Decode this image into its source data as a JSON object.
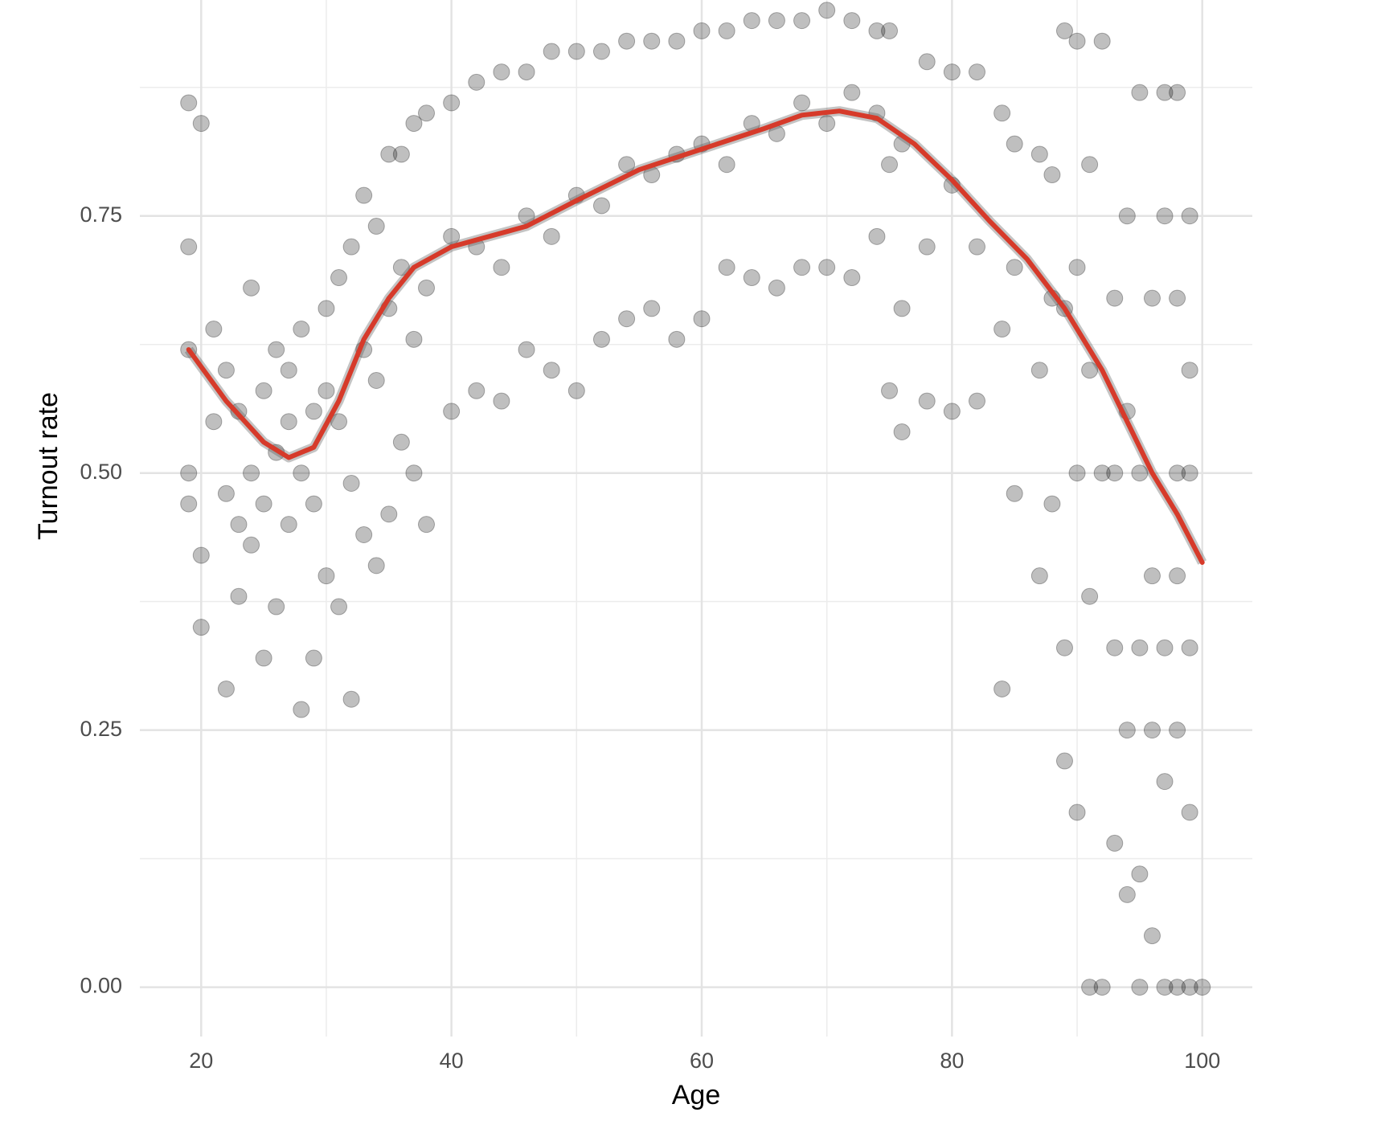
{
  "chart_data": {
    "type": "scatter",
    "x_label": "Age",
    "y_label": "Turnout rate",
    "xlim": [
      15.1,
      104
    ],
    "ylim": [
      -0.048,
      0.96
    ],
    "xticks": [
      20,
      40,
      60,
      80,
      100
    ],
    "yticks": [
      {
        "value": 0,
        "label": "0.00"
      },
      0.25,
      {
        "value": 0.5,
        "label": "0.50"
      },
      0.75
    ],
    "x_minor_ticks": [
      30,
      50,
      70,
      90
    ],
    "y_minor_ticks": [
      0.125,
      0.375,
      0.625,
      0.875
    ],
    "grid": true,
    "series": [
      {
        "kind": "points",
        "color": "#000000",
        "x": [
          19,
          19,
          19,
          19,
          19,
          20,
          20,
          20,
          21,
          21,
          22,
          22,
          22,
          23,
          23,
          23,
          24,
          24,
          24,
          25,
          25,
          25,
          26,
          26,
          26,
          27,
          27,
          27,
          28,
          28,
          28,
          29,
          29,
          29,
          30,
          30,
          30,
          31,
          31,
          31,
          32,
          32,
          32,
          33,
          33,
          33,
          34,
          34,
          34,
          35,
          35,
          35,
          36,
          36,
          36,
          37,
          37,
          37,
          38,
          38,
          38,
          40,
          40,
          40,
          42,
          42,
          42,
          44,
          44,
          44,
          46,
          46,
          46,
          48,
          48,
          48,
          50,
          50,
          50,
          52,
          52,
          52,
          54,
          54,
          54,
          56,
          56,
          56,
          58,
          58,
          58,
          60,
          60,
          60,
          62,
          62,
          62,
          64,
          64,
          64,
          66,
          66,
          66,
          68,
          68,
          68,
          70,
          70,
          70,
          72,
          72,
          72,
          74,
          74,
          74,
          75,
          75,
          75,
          76,
          76,
          76,
          78,
          78,
          78,
          80,
          80,
          80,
          82,
          82,
          82,
          84,
          84,
          84,
          85,
          85,
          85,
          87,
          87,
          87,
          88,
          88,
          88,
          89,
          89,
          89,
          89,
          90,
          90,
          90,
          90,
          91,
          91,
          91,
          91,
          92,
          92,
          92,
          93,
          93,
          93,
          93,
          94,
          94,
          94,
          94,
          95,
          95,
          95,
          95,
          95,
          96,
          96,
          96,
          96,
          97,
          97,
          97,
          97,
          97,
          98,
          98,
          98,
          98,
          98,
          98,
          99,
          99,
          99,
          99,
          99,
          99,
          100
        ],
        "y": [
          0.86,
          0.72,
          0.62,
          0.5,
          0.47,
          0.84,
          0.42,
          0.35,
          0.64,
          0.55,
          0.29,
          0.48,
          0.6,
          0.45,
          0.56,
          0.38,
          0.68,
          0.5,
          0.43,
          0.32,
          0.58,
          0.47,
          0.37,
          0.52,
          0.62,
          0.45,
          0.55,
          0.6,
          0.27,
          0.5,
          0.64,
          0.32,
          0.47,
          0.56,
          0.4,
          0.58,
          0.66,
          0.37,
          0.55,
          0.69,
          0.28,
          0.49,
          0.72,
          0.44,
          0.62,
          0.77,
          0.41,
          0.59,
          0.74,
          0.46,
          0.66,
          0.81,
          0.53,
          0.7,
          0.81,
          0.5,
          0.63,
          0.84,
          0.45,
          0.68,
          0.85,
          0.56,
          0.73,
          0.86,
          0.58,
          0.72,
          0.88,
          0.57,
          0.7,
          0.89,
          0.62,
          0.75,
          0.89,
          0.6,
          0.73,
          0.91,
          0.58,
          0.77,
          0.91,
          0.63,
          0.76,
          0.91,
          0.65,
          0.8,
          0.92,
          0.66,
          0.79,
          0.92,
          0.63,
          0.81,
          0.92,
          0.65,
          0.82,
          0.93,
          0.7,
          0.8,
          0.93,
          0.69,
          0.84,
          0.94,
          0.68,
          0.83,
          0.94,
          0.7,
          0.86,
          0.94,
          0.7,
          0.84,
          0.95,
          0.69,
          0.87,
          0.94,
          0.73,
          0.85,
          0.93,
          0.58,
          0.8,
          0.93,
          0.54,
          0.66,
          0.82,
          0.57,
          0.72,
          0.9,
          0.56,
          0.78,
          0.89,
          0.57,
          0.72,
          0.89,
          0.29,
          0.64,
          0.85,
          0.48,
          0.7,
          0.82,
          0.4,
          0.6,
          0.81,
          0.47,
          0.67,
          0.79,
          0.22,
          0.33,
          0.66,
          0.93,
          0.17,
          0.5,
          0.7,
          0.92,
          0.0,
          0.38,
          0.6,
          0.8,
          0.0,
          0.5,
          0.92,
          0.14,
          0.33,
          0.5,
          0.67,
          0.09,
          0.25,
          0.56,
          0.75,
          0.0,
          0.11,
          0.33,
          0.5,
          0.87,
          0.05,
          0.25,
          0.4,
          0.67,
          0.0,
          0.2,
          0.33,
          0.75,
          0.87,
          0.0,
          0.25,
          0.4,
          0.5,
          0.67,
          0.87,
          0.0,
          0.17,
          0.33,
          0.5,
          0.6,
          0.75,
          0.0
        ]
      },
      {
        "kind": "smooth",
        "color": "#d63a2a",
        "x": [
          19,
          22,
          25,
          27,
          29,
          31,
          33,
          35,
          37,
          40,
          43,
          46,
          50,
          55,
          60,
          65,
          68,
          71,
          74,
          77,
          80,
          83,
          86,
          89,
          92,
          94,
          96,
          98,
          100
        ],
        "y": [
          0.62,
          0.57,
          0.53,
          0.515,
          0.525,
          0.57,
          0.63,
          0.67,
          0.7,
          0.72,
          0.73,
          0.74,
          0.765,
          0.795,
          0.815,
          0.835,
          0.848,
          0.852,
          0.845,
          0.82,
          0.785,
          0.745,
          0.708,
          0.66,
          0.6,
          0.55,
          0.5,
          0.46,
          0.413
        ]
      }
    ]
  }
}
